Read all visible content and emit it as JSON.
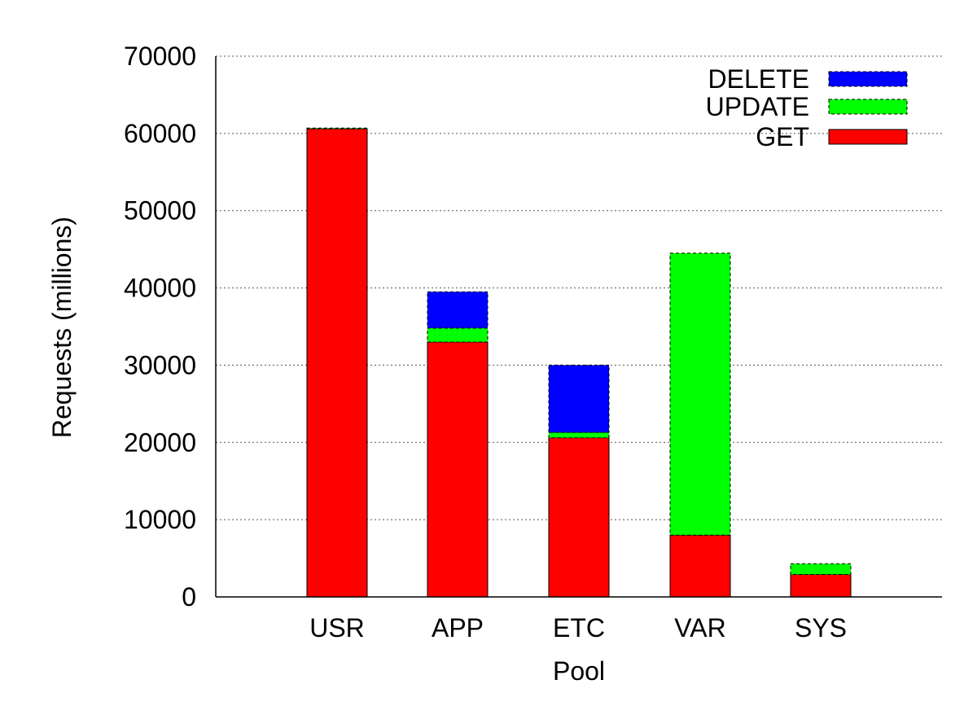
{
  "chart_data": {
    "type": "bar",
    "stacked": true,
    "xlabel": "Pool",
    "ylabel": "Requests (millions)",
    "ylim": [
      0,
      70000
    ],
    "yticks": [
      0,
      10000,
      20000,
      30000,
      40000,
      50000,
      60000,
      70000
    ],
    "grid": "horizontal-dotted",
    "legend_position": "top-right",
    "categories": [
      "USR",
      "APP",
      "ETC",
      "VAR",
      "SYS"
    ],
    "series": [
      {
        "name": "GET",
        "color": "#ff0000",
        "values": [
          60600,
          33000,
          20600,
          8000,
          2900
        ]
      },
      {
        "name": "UPDATE",
        "color": "#00ff00",
        "values": [
          100,
          1800,
          700,
          36500,
          1400
        ]
      },
      {
        "name": "DELETE",
        "color": "#0000ff",
        "values": [
          0,
          4700,
          8700,
          0,
          0
        ]
      }
    ],
    "legend_order": [
      "DELETE",
      "UPDATE",
      "GET"
    ]
  }
}
